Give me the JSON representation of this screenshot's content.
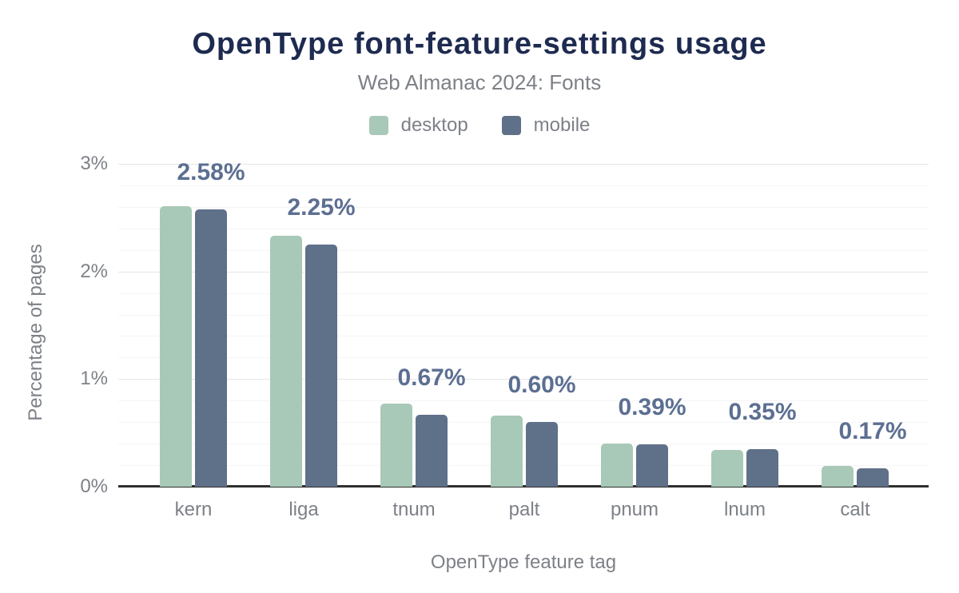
{
  "header": {
    "title": "OpenType font-feature-settings usage",
    "subtitle": "Web Almanac 2024: Fonts"
  },
  "legend": {
    "items": [
      {
        "label": "desktop",
        "color": "#a8c9b7"
      },
      {
        "label": "mobile",
        "color": "#5f7089"
      }
    ]
  },
  "chart_data": {
    "type": "bar",
    "title": "OpenType font-feature-settings usage",
    "subtitle": "Web Almanac 2024: Fonts",
    "categories": [
      "kern",
      "liga",
      "tnum",
      "palt",
      "pnum",
      "lnum",
      "calt"
    ],
    "series": [
      {
        "name": "desktop",
        "color": "#a8c9b7",
        "values": [
          2.61,
          2.33,
          0.77,
          0.66,
          0.4,
          0.34,
          0.19
        ]
      },
      {
        "name": "mobile",
        "color": "#5f7089",
        "values": [
          2.58,
          2.25,
          0.67,
          0.6,
          0.39,
          0.35,
          0.17
        ]
      }
    ],
    "data_labels": {
      "series": "mobile",
      "values": [
        "2.58%",
        "2.25%",
        "0.67%",
        "0.60%",
        "0.39%",
        "0.35%",
        "0.17%"
      ],
      "color": "#5c6f92"
    },
    "xlabel": "OpenType feature tag",
    "ylabel": "Percentage of pages",
    "y_ticks": [
      {
        "label": "0%",
        "value": 0
      },
      {
        "label": "1%",
        "value": 1
      },
      {
        "label": "2%",
        "value": 2
      },
      {
        "label": "3%",
        "value": 3
      }
    ],
    "ylim": [
      0,
      3
    ],
    "grid": {
      "minor_step": 0.2,
      "major_step": 1,
      "legend_position": "top"
    }
  },
  "colors": {
    "title": "#1e2b50",
    "muted_text": "#7d8187",
    "axis_line": "#2f2f2f",
    "grid_major": "#e6e6e6",
    "grid_minor": "#f5f5f5",
    "background": "#ffffff"
  }
}
